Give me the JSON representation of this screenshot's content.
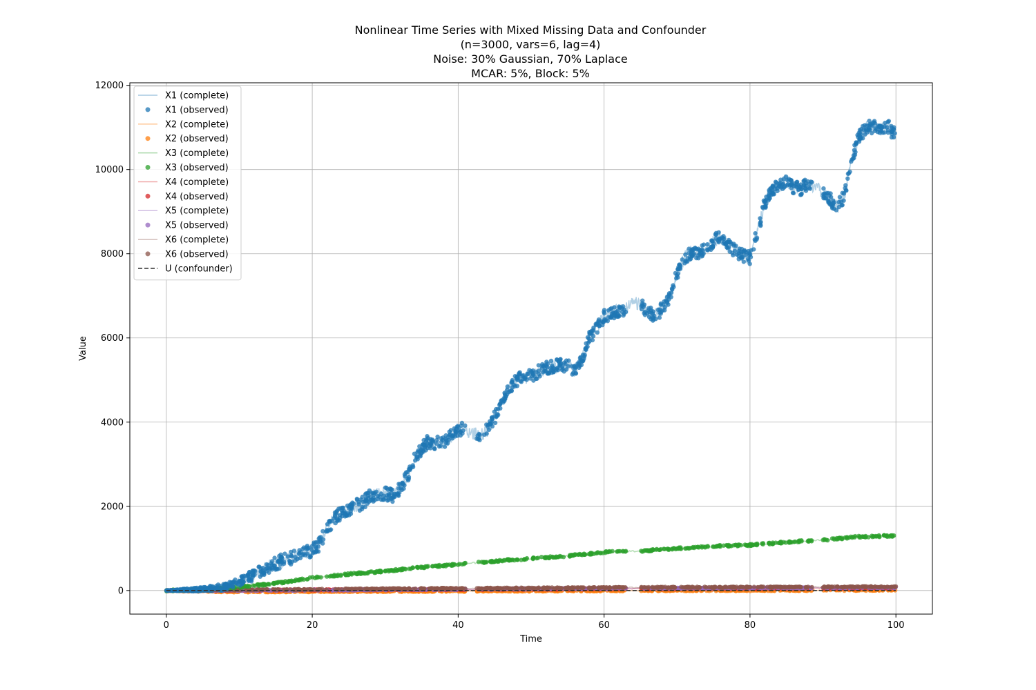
{
  "chart_data": {
    "type": "line",
    "title_lines": [
      "Nonlinear Time Series with Mixed Missing Data and Confounder",
      "(n=3000, vars=6, lag=4)",
      "Noise: 30% Gaussian, 70% Laplace",
      "MCAR: 5%, Block: 5%"
    ],
    "xlabel": "Time",
    "ylabel": "Value",
    "xlim": [
      -5,
      105
    ],
    "ylim": [
      -560,
      12060
    ],
    "xticks": [
      0,
      20,
      40,
      60,
      80,
      100
    ],
    "yticks": [
      0,
      2000,
      4000,
      6000,
      8000,
      10000,
      12000
    ],
    "grid": true,
    "legend_position": "upper left",
    "legend": [
      {
        "label": "X1 (complete)",
        "kind": "line",
        "color": "#1f77b4"
      },
      {
        "label": "X1 (observed)",
        "kind": "dot",
        "color": "#1f77b4"
      },
      {
        "label": "X2 (complete)",
        "kind": "line",
        "color": "#ff7f0e"
      },
      {
        "label": "X2 (observed)",
        "kind": "dot",
        "color": "#ff7f0e"
      },
      {
        "label": "X3 (complete)",
        "kind": "line",
        "color": "#2ca02c"
      },
      {
        "label": "X3 (observed)",
        "kind": "dot",
        "color": "#2ca02c"
      },
      {
        "label": "X4 (complete)",
        "kind": "line",
        "color": "#d62728"
      },
      {
        "label": "X4 (observed)",
        "kind": "dot",
        "color": "#d62728"
      },
      {
        "label": "X5 (complete)",
        "kind": "line",
        "color": "#9467bd"
      },
      {
        "label": "X5 (observed)",
        "kind": "dot",
        "color": "#9467bd"
      },
      {
        "label": "X6 (complete)",
        "kind": "line",
        "color": "#8c564b"
      },
      {
        "label": "X6 (observed)",
        "kind": "dot",
        "color": "#8c564b"
      },
      {
        "label": "U (confounder)",
        "kind": "dash",
        "color": "#333333"
      }
    ],
    "series": [
      {
        "name": "X1",
        "color": "#1f77b4",
        "x": [
          0,
          5,
          8,
          10,
          12,
          14,
          16,
          18,
          20,
          21,
          22,
          23,
          24,
          25,
          27,
          28,
          30,
          31,
          32,
          33,
          34,
          35,
          36,
          37,
          38,
          39,
          40,
          41,
          42,
          43,
          44,
          45,
          46,
          47,
          48,
          49,
          50,
          51,
          52,
          53,
          54,
          55,
          56,
          57,
          58,
          59,
          60,
          61,
          62,
          63,
          64,
          65,
          66,
          67,
          68,
          69,
          70,
          71,
          72,
          73,
          74,
          75,
          76,
          77,
          78,
          79,
          80,
          81,
          82,
          83,
          84,
          85,
          86,
          87,
          88,
          89,
          90,
          91,
          92,
          93,
          94,
          95,
          96,
          97,
          98,
          99,
          100
        ],
        "y": [
          0,
          30,
          80,
          200,
          370,
          560,
          720,
          820,
          950,
          1100,
          1450,
          1700,
          1850,
          1930,
          2100,
          2250,
          2300,
          2250,
          2400,
          2700,
          3100,
          3400,
          3550,
          3500,
          3500,
          3650,
          3850,
          3800,
          3750,
          3700,
          3800,
          4100,
          4500,
          4800,
          5000,
          5050,
          5100,
          5200,
          5300,
          5300,
          5350,
          5350,
          5200,
          5500,
          6000,
          6250,
          6500,
          6600,
          6650,
          6700,
          6850,
          6800,
          6600,
          6550,
          6700,
          7000,
          7500,
          7900,
          8050,
          8000,
          8100,
          8300,
          8400,
          8250,
          8050,
          7950,
          7900,
          8500,
          9200,
          9500,
          9600,
          9750,
          9550,
          9550,
          9650,
          9600,
          9400,
          9300,
          9100,
          9400,
          10300,
          10800,
          11000,
          11000,
          10950,
          11000,
          10800
        ]
      },
      {
        "name": "X2",
        "color": "#ff7f0e",
        "x": [
          0,
          5,
          10,
          20,
          30,
          40,
          50,
          60,
          70,
          80,
          90,
          100
        ],
        "y": [
          0,
          -20,
          -30,
          -25,
          -20,
          -15,
          -10,
          -5,
          0,
          0,
          5,
          10
        ]
      },
      {
        "name": "X3",
        "color": "#2ca02c",
        "x": [
          0,
          5,
          10,
          15,
          20,
          25,
          30,
          35,
          40,
          45,
          50,
          55,
          60,
          65,
          70,
          75,
          80,
          85,
          90,
          95,
          100
        ],
        "y": [
          0,
          20,
          80,
          170,
          300,
          390,
          460,
          550,
          620,
          700,
          760,
          820,
          910,
          940,
          1000,
          1050,
          1080,
          1150,
          1200,
          1280,
          1300
        ]
      },
      {
        "name": "X4",
        "color": "#d62728",
        "x": [
          0,
          10,
          20,
          30,
          40,
          50,
          60,
          70,
          80,
          90,
          100
        ],
        "y": [
          0,
          10,
          15,
          20,
          25,
          30,
          40,
          45,
          50,
          55,
          60
        ]
      },
      {
        "name": "X5",
        "color": "#9467bd",
        "x": [
          0,
          10,
          20,
          30,
          40,
          50,
          60,
          70,
          80,
          90,
          100
        ],
        "y": [
          0,
          5,
          10,
          20,
          30,
          40,
          50,
          55,
          60,
          65,
          70
        ]
      },
      {
        "name": "X6",
        "color": "#8c564b",
        "x": [
          0,
          10,
          20,
          30,
          40,
          50,
          60,
          70,
          80,
          90,
          100
        ],
        "y": [
          0,
          15,
          25,
          40,
          50,
          60,
          70,
          75,
          80,
          85,
          90
        ]
      },
      {
        "name": "U",
        "color": "#333333",
        "x": [
          0,
          20,
          40,
          60,
          80,
          100
        ],
        "y": [
          0,
          0,
          0,
          0,
          0,
          0
        ]
      }
    ]
  }
}
